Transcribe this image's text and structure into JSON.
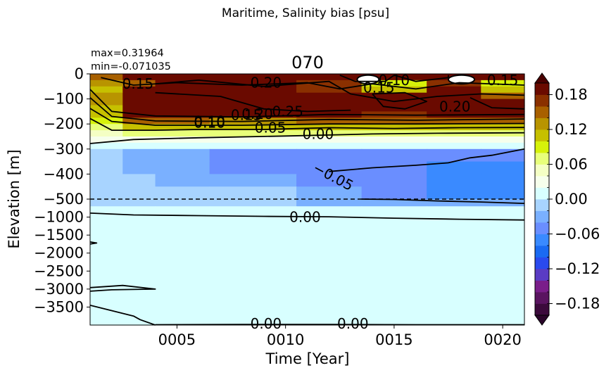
{
  "chart_data": {
    "type": "heatmap",
    "suptitle": "Maritime, Salinity bias [psu]",
    "title": "070",
    "stats": {
      "max": "max=0.31964",
      "min": "min=-0.071035"
    },
    "xlabel": "Time [Year]",
    "ylabel": "Elevation [m]",
    "xlim": [
      1,
      21
    ],
    "x_ticks": [
      5,
      10,
      15,
      20
    ],
    "x_tick_labels": [
      "0005",
      "0010",
      "0015",
      "0020"
    ],
    "y_upper": {
      "range": [
        -500,
        0
      ],
      "ticks": [
        0,
        -100,
        -200,
        -300,
        -400,
        -500
      ],
      "tick_labels": [
        "0",
        "−100",
        "−200",
        "−300",
        "−400",
        "−500"
      ]
    },
    "y_lower": {
      "range": [
        -4000,
        -500
      ],
      "ticks": [
        -1000,
        -1500,
        -2000,
        -2500,
        -3000,
        -3500
      ],
      "tick_labels": [
        "−1000",
        "−1500",
        "−2000",
        "−2500",
        "−3000",
        "−3500"
      ]
    },
    "colorbar": {
      "levels": [
        -0.2,
        -0.18,
        -0.16,
        -0.14,
        -0.12,
        -0.1,
        -0.08,
        -0.06,
        -0.04,
        -0.02,
        0.0,
        0.02,
        0.04,
        0.06,
        0.08,
        0.1,
        0.12,
        0.14,
        0.16,
        0.18,
        0.2
      ],
      "colors": [
        "#3c0a3c",
        "#5a1460",
        "#7a1e8a",
        "#5a3cc4",
        "#2a4aee",
        "#1a6af2",
        "#3a8aff",
        "#6a8eff",
        "#7ab0ff",
        "#a8d4ff",
        "#d8ffff",
        "#f6ffec",
        "#f4ffc4",
        "#e8ff7a",
        "#d6f20a",
        "#c6c000",
        "#b89400",
        "#a86000",
        "#8a3000",
        "#6a0a00"
      ],
      "under_color": "#2a052a",
      "over_color": "#4a0000",
      "ticks": [
        -0.18,
        -0.12,
        -0.06,
        0.0,
        0.06,
        0.12,
        0.18
      ],
      "tick_labels": [
        "−0.18",
        "−0.12",
        "−0.06",
        "0.00",
        "0.06",
        "0.12",
        "0.18"
      ]
    },
    "contour_labels": [
      {
        "text": "0.15",
        "x": 3.2,
        "y": -40
      },
      {
        "text": "0.20",
        "x": 9.1,
        "y": -35
      },
      {
        "text": "0.10",
        "x": 6.5,
        "y": -195
      },
      {
        "text": "0.10",
        "x": 6.5,
        "y": -190
      },
      {
        "text": "0.15",
        "x": 8.2,
        "y": -165
      },
      {
        "text": "0.20",
        "x": 8.7,
        "y": -160
      },
      {
        "text": "0.25",
        "x": 10.1,
        "y": -150
      },
      {
        "text": "0.05",
        "x": 9.3,
        "y": -215
      },
      {
        "text": "0.00",
        "x": 11.5,
        "y": -240
      },
      {
        "text": "0.15",
        "x": 14.3,
        "y": -55
      },
      {
        "text": "0.10",
        "x": 15.0,
        "y": -25
      },
      {
        "text": "0.20",
        "x": 17.8,
        "y": -130
      },
      {
        "text": "0.15",
        "x": 20.0,
        "y": -25
      },
      {
        "text": "−0.05",
        "x": 12.2,
        "y": -410
      },
      {
        "text": "0.00",
        "x": 10.9,
        "y": -1000
      },
      {
        "text": "0.00",
        "x": 9.1,
        "y": -3960
      },
      {
        "text": "0.00",
        "x": 13.1,
        "y": -3960
      }
    ],
    "data": {
      "x_edges": [
        1,
        2.5,
        4,
        6.5,
        10.5,
        13.5,
        16.5,
        19,
        21
      ],
      "upper_depth_edges": [
        0,
        -25,
        -50,
        -75,
        -100,
        -125,
        -150,
        -175,
        -200,
        -225,
        -250,
        -275,
        -300,
        -350,
        -400,
        -450,
        -500
      ],
      "upper_values": [
        [
          0.14,
          0.19,
          0.19,
          0.19,
          0.19,
          0.19,
          0.19,
          0.19
        ],
        [
          0.12,
          0.14,
          0.19,
          0.19,
          0.17,
          0.09,
          0.17,
          0.08
        ],
        [
          0.1,
          0.19,
          0.19,
          0.19,
          0.17,
          0.11,
          0.19,
          0.11
        ],
        [
          0.12,
          0.19,
          0.19,
          0.19,
          0.19,
          0.19,
          0.19,
          0.15
        ],
        [
          0.13,
          0.19,
          0.19,
          0.19,
          0.19,
          0.19,
          0.19,
          0.19
        ],
        [
          0.11,
          0.19,
          0.19,
          0.19,
          0.19,
          0.19,
          0.19,
          0.19
        ],
        [
          0.11,
          0.19,
          0.19,
          0.19,
          0.19,
          0.17,
          0.19,
          0.19
        ],
        [
          0.09,
          0.15,
          0.15,
          0.13,
          0.15,
          0.15,
          0.15,
          0.15
        ],
        [
          0.07,
          0.11,
          0.11,
          0.11,
          0.11,
          0.11,
          0.11,
          0.11
        ],
        [
          0.05,
          0.07,
          0.07,
          0.07,
          0.07,
          0.07,
          0.07,
          0.07
        ],
        [
          0.03,
          0.03,
          0.03,
          0.03,
          0.03,
          0.03,
          0.03,
          0.03
        ],
        [
          0.01,
          0.01,
          0.01,
          0.01,
          0.01,
          0.01,
          0.01,
          0.01
        ],
        [
          -0.01,
          -0.03,
          -0.03,
          -0.05,
          -0.05,
          -0.05,
          -0.05,
          -0.05
        ],
        [
          -0.01,
          -0.03,
          -0.03,
          -0.05,
          -0.05,
          -0.05,
          -0.07,
          -0.07
        ],
        [
          -0.01,
          -0.01,
          -0.03,
          -0.03,
          -0.05,
          -0.05,
          -0.07,
          -0.07
        ],
        [
          -0.01,
          -0.01,
          -0.01,
          -0.01,
          -0.03,
          -0.05,
          -0.07,
          -0.07
        ]
      ],
      "lower_depth_edges": [
        -500,
        -700,
        -1000,
        -4000
      ],
      "lower_values": [
        [
          -0.01,
          -0.01,
          -0.01,
          -0.01,
          -0.03,
          -0.03,
          -0.03,
          -0.03
        ],
        [
          0.01,
          0.01,
          0.01,
          0.01,
          0.01,
          0.01,
          0.01,
          0.01
        ],
        [
          0.01,
          0.01,
          0.01,
          0.01,
          0.01,
          0.01,
          0.01,
          0.01
        ]
      ],
      "high_salinity_patches": [
        {
          "x": [
            13.3,
            14.3
          ],
          "y": [
            -5,
            -40
          ]
        },
        {
          "x": [
            17.5,
            18.7
          ],
          "y": [
            -5,
            -40
          ]
        }
      ]
    },
    "contours": [
      {
        "level": "0.00",
        "style": "solid",
        "points": [
          [
            1,
            -278
          ],
          [
            3,
            -262
          ],
          [
            6,
            -255
          ],
          [
            10,
            -248
          ],
          [
            14,
            -240
          ],
          [
            17,
            -237
          ],
          [
            21,
            -235
          ]
        ]
      },
      {
        "level": "0.05",
        "style": "solid",
        "points": [
          [
            1,
            -178
          ],
          [
            2,
            -225
          ],
          [
            4,
            -225
          ],
          [
            6,
            -222
          ],
          [
            9,
            -222
          ],
          [
            12,
            -215
          ],
          [
            15,
            -218
          ],
          [
            18,
            -215
          ],
          [
            21,
            -214
          ]
        ]
      },
      {
        "level": "0.10",
        "style": "solid",
        "points": [
          [
            1,
            -138
          ],
          [
            2,
            -190
          ],
          [
            4,
            -205
          ],
          [
            8,
            -205
          ],
          [
            12,
            -200
          ],
          [
            16,
            -200
          ],
          [
            21,
            -198
          ]
        ]
      },
      {
        "level": "0.15",
        "style": "solid",
        "points": [
          [
            1,
            -95
          ],
          [
            2,
            -170
          ],
          [
            4,
            -188
          ],
          [
            8,
            -190
          ],
          [
            12,
            -182
          ],
          [
            16,
            -185
          ],
          [
            21,
            -180
          ]
        ]
      },
      {
        "level": "0.20",
        "style": "solid",
        "points": [
          [
            1,
            -62
          ],
          [
            2,
            -150
          ],
          [
            4,
            -168
          ],
          [
            8,
            -172
          ],
          [
            12,
            -162
          ],
          [
            16,
            -165
          ],
          [
            21,
            -162
          ]
        ]
      },
      {
        "level": "0.25",
        "style": "solid",
        "points": [
          [
            4,
            -75
          ],
          [
            7,
            -90
          ],
          [
            9,
            -140
          ],
          [
            11,
            -150
          ],
          [
            13,
            -145
          ]
        ]
      },
      {
        "level": "0.15",
        "style": "solid",
        "points": [
          [
            1.5,
            -15
          ],
          [
            3,
            -45
          ],
          [
            5,
            -35
          ],
          [
            8,
            -45
          ],
          [
            11,
            -35
          ],
          [
            12.5,
            -60
          ],
          [
            14,
            -40
          ],
          [
            16,
            -60
          ],
          [
            18,
            -35
          ],
          [
            21,
            -45
          ]
        ]
      },
      {
        "level": "0.20",
        "style": "solid",
        "points": [
          [
            4,
            -40
          ],
          [
            6,
            -25
          ],
          [
            9,
            -50
          ],
          [
            12,
            -30
          ],
          [
            13,
            -80
          ],
          [
            15,
            -110
          ],
          [
            17,
            -90
          ],
          [
            19,
            -80
          ],
          [
            21,
            -85
          ]
        ]
      },
      {
        "level": "0.25",
        "style": "solid",
        "points": [
          [
            14,
            -80
          ],
          [
            14.5,
            -130
          ],
          [
            15.5,
            -140
          ],
          [
            16.5,
            -110
          ],
          [
            15.5,
            -75
          ],
          [
            14,
            -80
          ]
        ]
      },
      {
        "level": "0.25",
        "style": "solid",
        "points": [
          [
            18.5,
            -95
          ],
          [
            19.5,
            -135
          ],
          [
            21,
            -140
          ]
        ]
      },
      {
        "level": "0.10",
        "style": "solid",
        "points": [
          [
            15,
            -5
          ],
          [
            16,
            -30
          ],
          [
            17.5,
            -15
          ],
          [
            17.5,
            -5
          ]
        ]
      },
      {
        "level": "0.10",
        "style": "solid",
        "points": [
          [
            12.5,
            -5
          ],
          [
            13.2,
            -30
          ],
          [
            14.6,
            -30
          ],
          [
            15,
            -5
          ]
        ]
      },
      {
        "level": "−0.05",
        "style": "solid",
        "points": [
          [
            12,
            -390
          ],
          [
            14,
            -375
          ],
          [
            16,
            -365
          ],
          [
            17.5,
            -355
          ],
          [
            18.5,
            -335
          ],
          [
            19.5,
            -325
          ],
          [
            21,
            -300
          ]
        ]
      },
      {
        "level": "−0.05",
        "style": "solid",
        "points": [
          [
            13.5,
            -500
          ],
          [
            15,
            -510
          ],
          [
            17,
            -550
          ],
          [
            19,
            -580
          ],
          [
            21,
            -620
          ]
        ]
      },
      {
        "level": "0.00",
        "style": "solid",
        "points": [
          [
            1,
            -890
          ],
          [
            3,
            -940
          ],
          [
            6,
            -960
          ],
          [
            9,
            -980
          ],
          [
            12,
            -990
          ],
          [
            15,
            -1030
          ],
          [
            18,
            -1060
          ],
          [
            21,
            -1080
          ]
        ]
      },
      {
        "level": "0.00",
        "style": "solid",
        "points": [
          [
            1,
            -1750
          ],
          [
            1.3,
            -1720
          ],
          [
            1,
            -1690
          ]
        ]
      },
      {
        "level": "0.00",
        "style": "solid",
        "points": [
          [
            1,
            -3450
          ],
          [
            3,
            -3750
          ],
          [
            3.3,
            -3850
          ],
          [
            4,
            -4000
          ]
        ]
      },
      {
        "level": "0.00",
        "style": "solid",
        "points": [
          [
            1,
            -2960
          ],
          [
            2.5,
            -2900
          ],
          [
            4,
            -3000
          ],
          [
            2,
            -3020
          ],
          [
            1,
            -3060
          ]
        ]
      },
      {
        "level": "0.00",
        "style": "solid",
        "points": [
          [
            4,
            -3990
          ],
          [
            8,
            -3985
          ],
          [
            12,
            -3985
          ],
          [
            16,
            -3990
          ],
          [
            21,
            -3990
          ]
        ]
      },
      {
        "level": "split",
        "style": "dashed",
        "points": [
          [
            1,
            -500
          ],
          [
            21,
            -500
          ]
        ]
      }
    ]
  }
}
